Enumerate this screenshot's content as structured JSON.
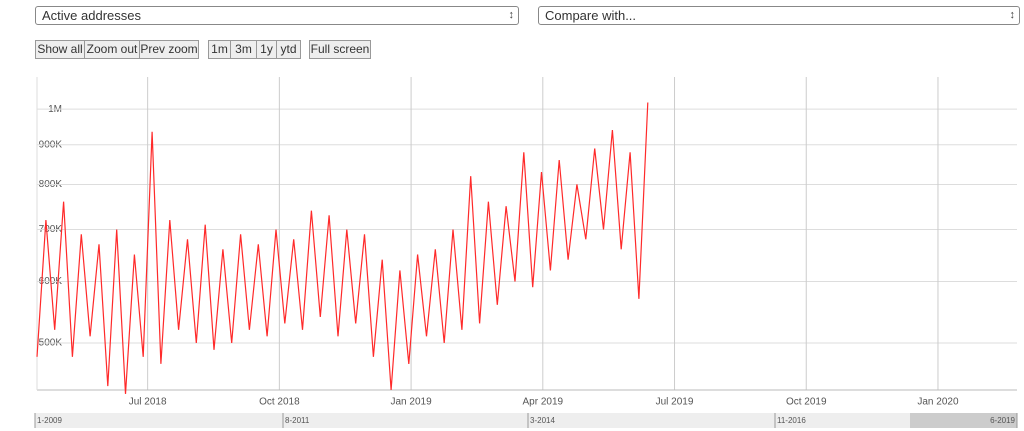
{
  "controls": {
    "metric": "Active addresses",
    "compare": "Compare with...",
    "zoom_buttons": [
      "Show all",
      "Zoom out",
      "Prev zoom"
    ],
    "range_buttons": [
      "1m",
      "3m",
      "1y",
      "ytd"
    ],
    "fullscreen": "Full screen"
  },
  "chart_data": {
    "type": "line",
    "log_y": true,
    "grid": true,
    "series": [
      {
        "name": "Active addresses",
        "color": "#ff2a2a",
        "x": [
          2018.29,
          2018.3068,
          2018.3236,
          2018.3404,
          2018.3572,
          2018.374,
          2018.3908,
          2018.4076,
          2018.4244,
          2018.4412,
          2018.458,
          2018.4748,
          2018.4916,
          2018.5084,
          2018.5252,
          2018.542,
          2018.5588,
          2018.5756,
          2018.5924,
          2018.6092,
          2018.626,
          2018.6428,
          2018.6596,
          2018.6764,
          2018.6932,
          2018.71,
          2018.7268,
          2018.7436,
          2018.7604,
          2018.7772,
          2018.794,
          2018.8108,
          2018.8276,
          2018.8444,
          2018.8612,
          2018.878,
          2018.8948,
          2018.9116,
          2018.9284,
          2018.9452,
          2018.962,
          2018.9788,
          2018.9956,
          2019.0124,
          2019.0292,
          2019.046,
          2019.0628,
          2019.0796,
          2019.0964,
          2019.1132,
          2019.13,
          2019.1468,
          2019.1636,
          2019.1804,
          2019.1972,
          2019.214,
          2019.2308,
          2019.2476,
          2019.2644,
          2019.2812,
          2019.298,
          2019.3148,
          2019.3316,
          2019.3484,
          2019.3652,
          2019.382,
          2019.3988,
          2019.4156,
          2019.4324,
          2019.4492
        ],
        "values": [
          480000,
          720000,
          520000,
          760000,
          480000,
          690000,
          510000,
          670000,
          440000,
          700000,
          430000,
          650000,
          480000,
          935000,
          470000,
          720000,
          520000,
          680000,
          500000,
          710000,
          490000,
          660000,
          500000,
          690000,
          520000,
          670000,
          510000,
          700000,
          530000,
          680000,
          520000,
          740000,
          540000,
          730000,
          510000,
          700000,
          530000,
          690000,
          480000,
          640000,
          435000,
          620000,
          470000,
          650000,
          510000,
          660000,
          500000,
          700000,
          520000,
          820000,
          530000,
          760000,
          560000,
          750000,
          600000,
          880000,
          590000,
          830000,
          620000,
          860000,
          640000,
          800000,
          680000,
          890000,
          700000,
          940000,
          660000,
          880000,
          570000,
          1020000
        ]
      }
    ],
    "xlim": [
      2018.29,
      2020.15
    ],
    "xticks": [
      {
        "value": 2018.5,
        "label": "Jul 2018"
      },
      {
        "value": 2018.75,
        "label": "Oct 2018"
      },
      {
        "value": 2019,
        "label": "Jan 2019"
      },
      {
        "value": 2019.25,
        "label": "Apr 2019"
      },
      {
        "value": 2019.5,
        "label": "Jul 2019"
      },
      {
        "value": 2019.75,
        "label": "Oct 2019"
      },
      {
        "value": 2020,
        "label": "Jan 2020"
      }
    ],
    "ylim": [
      435000,
      1100000
    ],
    "yticks": [
      {
        "value": 500000,
        "label": "500K"
      },
      {
        "value": 600000,
        "label": "600K"
      },
      {
        "value": 700000,
        "label": "700K"
      },
      {
        "value": 800000,
        "label": "800K"
      },
      {
        "value": 900000,
        "label": "900K"
      },
      {
        "value": 1000000,
        "label": "1M"
      }
    ],
    "navigator": {
      "labels": [
        "1-2009",
        "8-2011",
        "3-2014",
        "11-2016",
        "6-2019"
      ]
    }
  }
}
